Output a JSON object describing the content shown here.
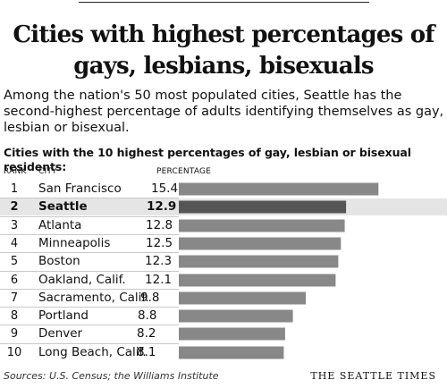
{
  "title_line1": "Cities with highest percentages of",
  "title_line2": "gays, lesbians, bisexuals",
  "intro": "Among the nation's 50 most populated cities, Seattle has the second-highest percentage of adults identifying themselves as gay, lesbian or bisexual.",
  "subhead": "Cities with the 10 highest percentages of gay, lesbian or bisexual residents:",
  "columns": {
    "rank": "RANK",
    "city": "CITY",
    "percentage": "PERCENTAGE"
  },
  "source": "Sources: U.S. Census; the Williams Institute",
  "credit": "THE SEATTLE TIMES",
  "colors": {
    "bar": "#888888",
    "highlight_bar": "#555555",
    "highlight_row": "#e5e5e5"
  },
  "chart_data": {
    "type": "bar",
    "orientation": "horizontal",
    "highlight": "Seattle",
    "rows": [
      {
        "rank": "1",
        "city": "San Francisco",
        "value": 15.4
      },
      {
        "rank": "2",
        "city": "Seattle",
        "value": 12.9
      },
      {
        "rank": "3",
        "city": "Atlanta",
        "value": 12.8
      },
      {
        "rank": "4",
        "city": "Minneapolis",
        "value": 12.5
      },
      {
        "rank": "5",
        "city": "Boston",
        "value": 12.3
      },
      {
        "rank": "6",
        "city": "Oakland, Calif.",
        "value": 12.1
      },
      {
        "rank": "7",
        "city": "Sacramento, Calif.",
        "value": 9.8
      },
      {
        "rank": "8",
        "city": "Portland",
        "value": 8.8
      },
      {
        "rank": "9",
        "city": "Denver",
        "value": 8.2
      },
      {
        "rank": "10",
        "city": "Long Beach, Calif.",
        "value": 8.1
      }
    ]
  }
}
